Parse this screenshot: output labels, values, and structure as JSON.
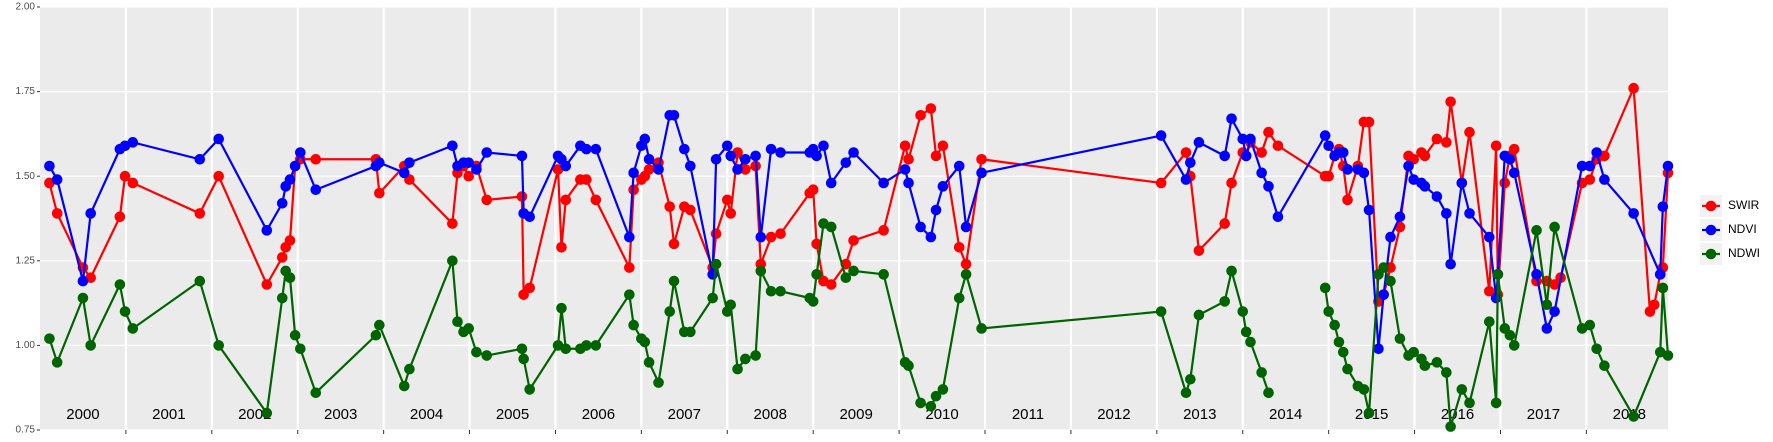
{
  "chart_data": {
    "type": "line",
    "xlim": [
      2000,
      2018.95
    ],
    "ylim": [
      0.75,
      2.0
    ],
    "yticks": [
      0.75,
      {
        "value": 1.0,
        "label": "1.00"
      },
      1.25,
      {
        "value": 1.5,
        "label": "1.50"
      },
      {
        "value": 1.75,
        "label": "1.75"
      },
      {
        "value": 2.0,
        "label": "2.00"
      }
    ],
    "xticks": [
      2001,
      2002,
      2003,
      2004,
      2005,
      2006,
      2007,
      2008,
      2009,
      2010,
      2011,
      2012,
      2013,
      2014,
      2015,
      2016,
      2017,
      2018
    ],
    "x_labels": [
      {
        "value": 2000.5,
        "label": "2000"
      },
      {
        "value": 2001.5,
        "label": "2001"
      },
      {
        "value": 2002.5,
        "label": "2002"
      },
      {
        "value": 2003.5,
        "label": "2003"
      },
      {
        "value": 2004.5,
        "label": "2004"
      },
      {
        "value": 2005.5,
        "label": "2005"
      },
      {
        "value": 2006.5,
        "label": "2006"
      },
      {
        "value": 2007.5,
        "label": "2007"
      },
      {
        "value": 2008.5,
        "label": "2008"
      },
      {
        "value": 2009.5,
        "label": "2009"
      },
      {
        "value": 2010.5,
        "label": "2010"
      },
      {
        "value": 2011.5,
        "label": "2011"
      },
      {
        "value": 2012.5,
        "label": "2012"
      },
      {
        "value": 2013.5,
        "label": "2013"
      },
      {
        "value": 2014.5,
        "label": "2014"
      },
      {
        "value": 2015.5,
        "label": "2015"
      },
      {
        "value": 2016.5,
        "label": "2016"
      },
      {
        "value": 2017.5,
        "label": "2017"
      },
      {
        "value": 2018.5,
        "label": "2018"
      }
    ],
    "grid": true,
    "legend": "right",
    "series": [
      {
        "name": "SWIR",
        "color": "#ff0000",
        "x": [
          2000.11,
          2000.2,
          2000.5,
          2000.59,
          2000.93,
          2000.99,
          2001.08,
          2001.86,
          2002.08,
          2002.64,
          2002.82,
          2002.86,
          2002.91,
          2002.97,
          2003.03,
          2003.21,
          2003.91,
          2003.95,
          2004.24,
          2004.3,
          2004.8,
          2004.86,
          2004.93,
          2004.99,
          2005.08,
          2005.2,
          2005.61,
          2005.63,
          2005.7,
          2006.03,
          2006.07,
          2006.12,
          2006.29,
          2006.36,
          2006.47,
          2006.86,
          2006.91,
          2007.0,
          2007.04,
          2007.09,
          2007.2,
          2007.33,
          2007.38,
          2007.5,
          2007.57,
          2007.83,
          2007.87,
          2008.0,
          2008.04,
          2008.12,
          2008.21,
          2008.33,
          2008.39,
          2008.51,
          2008.62,
          2008.96,
          2009.0,
          2009.04,
          2009.12,
          2009.21,
          2009.38,
          2009.47,
          2009.82,
          2010.07,
          2010.11,
          2010.25,
          2010.37,
          2010.43,
          2010.51,
          2010.7,
          2010.78,
          2010.96,
          2013.05,
          2013.34,
          2013.39,
          2013.49,
          2013.79,
          2013.87,
          2014.0,
          2014.04,
          2014.09,
          2014.22,
          2014.3,
          2014.41,
          2014.96,
          2015.0,
          2015.07,
          2015.12,
          2015.17,
          2015.22,
          2015.34,
          2015.41,
          2015.47,
          2015.58,
          2015.64,
          2015.72,
          2015.83,
          2015.93,
          2015.99,
          2016.08,
          2016.12,
          2016.26,
          2016.37,
          2016.42,
          2016.55,
          2016.64,
          2016.87,
          2016.95,
          2016.97,
          2017.05,
          2017.11,
          2017.16,
          2017.42,
          2017.54,
          2017.63,
          2017.7,
          2017.95,
          2018.04,
          2018.12,
          2018.21,
          2018.55,
          2018.74,
          2018.79,
          2018.86,
          2018.89,
          2018.95
        ],
        "values": [
          1.48,
          1.39,
          1.23,
          1.2,
          1.38,
          1.5,
          1.48,
          1.39,
          1.5,
          1.18,
          1.26,
          1.29,
          1.31,
          1.53,
          1.55,
          1.55,
          1.55,
          1.45,
          1.53,
          1.49,
          1.36,
          1.51,
          1.53,
          1.5,
          1.53,
          1.43,
          1.44,
          1.15,
          1.17,
          1.52,
          1.29,
          1.43,
          1.49,
          1.49,
          1.43,
          1.23,
          1.46,
          1.49,
          1.5,
          1.52,
          1.54,
          1.41,
          1.3,
          1.41,
          1.4,
          1.23,
          1.33,
          1.43,
          1.39,
          1.57,
          1.52,
          1.53,
          1.24,
          1.32,
          1.33,
          1.45,
          1.46,
          1.3,
          1.19,
          1.18,
          1.24,
          1.31,
          1.34,
          1.59,
          1.55,
          1.68,
          1.7,
          1.56,
          1.59,
          1.29,
          1.24,
          1.55,
          1.48,
          1.57,
          1.5,
          1.28,
          1.36,
          1.48,
          1.57,
          1.56,
          1.6,
          1.57,
          1.63,
          1.59,
          1.5,
          1.5,
          1.56,
          1.58,
          1.53,
          1.43,
          1.53,
          1.66,
          1.66,
          1.13,
          1.15,
          1.23,
          1.35,
          1.56,
          1.55,
          1.57,
          1.56,
          1.61,
          1.6,
          1.72,
          1.48,
          1.63,
          1.16,
          1.59,
          1.15,
          1.48,
          1.56,
          1.58,
          1.19,
          1.19,
          1.18,
          1.2,
          1.48,
          1.49,
          1.55,
          1.56,
          1.76,
          1.1,
          1.12,
          1.21,
          1.23,
          1.51
        ]
      },
      {
        "name": "NDVI",
        "color": "#0000ff",
        "x": [
          2000.11,
          2000.2,
          2000.5,
          2000.59,
          2000.93,
          2000.99,
          2001.08,
          2001.86,
          2002.08,
          2002.64,
          2002.82,
          2002.86,
          2002.91,
          2002.97,
          2003.03,
          2003.21,
          2003.91,
          2003.95,
          2004.24,
          2004.3,
          2004.8,
          2004.86,
          2004.93,
          2004.99,
          2005.08,
          2005.2,
          2005.61,
          2005.63,
          2005.7,
          2006.03,
          2006.07,
          2006.12,
          2006.29,
          2006.36,
          2006.47,
          2006.86,
          2006.91,
          2007.0,
          2007.04,
          2007.09,
          2007.2,
          2007.33,
          2007.38,
          2007.5,
          2007.57,
          2007.83,
          2007.87,
          2008.0,
          2008.04,
          2008.12,
          2008.21,
          2008.33,
          2008.39,
          2008.51,
          2008.62,
          2008.96,
          2009.0,
          2009.04,
          2009.12,
          2009.21,
          2009.38,
          2009.47,
          2009.82,
          2010.07,
          2010.11,
          2010.25,
          2010.37,
          2010.43,
          2010.51,
          2010.7,
          2010.78,
          2010.96,
          2013.05,
          2013.34,
          2013.39,
          2013.49,
          2013.79,
          2013.87,
          2014.0,
          2014.04,
          2014.09,
          2014.22,
          2014.3,
          2014.41,
          2014.96,
          2015.0,
          2015.07,
          2015.12,
          2015.17,
          2015.22,
          2015.34,
          2015.41,
          2015.47,
          2015.58,
          2015.64,
          2015.72,
          2015.83,
          2015.93,
          2015.99,
          2016.08,
          2016.12,
          2016.26,
          2016.37,
          2016.42,
          2016.55,
          2016.64,
          2016.87,
          2016.95,
          2016.97,
          2017.05,
          2017.11,
          2017.16,
          2017.42,
          2017.54,
          2017.63,
          2017.95,
          2018.04,
          2018.12,
          2018.21,
          2018.55,
          2018.86,
          2018.89,
          2018.95
        ],
        "values": [
          1.53,
          1.49,
          1.19,
          1.39,
          1.58,
          1.59,
          1.6,
          1.55,
          1.61,
          1.34,
          1.42,
          1.47,
          1.49,
          1.53,
          1.57,
          1.46,
          1.53,
          1.54,
          1.51,
          1.54,
          1.59,
          1.53,
          1.54,
          1.54,
          1.52,
          1.57,
          1.56,
          1.39,
          1.38,
          1.56,
          1.55,
          1.53,
          1.59,
          1.58,
          1.58,
          1.32,
          1.51,
          1.59,
          1.61,
          1.55,
          1.52,
          1.68,
          1.68,
          1.58,
          1.53,
          1.21,
          1.55,
          1.59,
          1.56,
          1.52,
          1.55,
          1.56,
          1.32,
          1.58,
          1.57,
          1.57,
          1.58,
          1.56,
          1.59,
          1.48,
          1.54,
          1.57,
          1.48,
          1.52,
          1.48,
          1.35,
          1.32,
          1.4,
          1.47,
          1.53,
          1.35,
          1.51,
          1.62,
          1.49,
          1.54,
          1.6,
          1.56,
          1.67,
          1.61,
          1.56,
          1.61,
          1.51,
          1.47,
          1.38,
          1.62,
          1.59,
          1.56,
          1.57,
          1.57,
          1.52,
          1.52,
          1.51,
          1.4,
          0.99,
          1.15,
          1.32,
          1.38,
          1.53,
          1.49,
          1.48,
          1.47,
          1.44,
          1.39,
          1.24,
          1.48,
          1.39,
          1.32,
          1.14,
          1.21,
          1.56,
          1.55,
          1.51,
          1.21,
          1.05,
          1.1,
          1.53,
          1.53,
          1.57,
          1.49,
          1.39,
          1.21,
          1.41,
          1.53
        ]
      },
      {
        "name": "NDWI",
        "color": "#006400",
        "x": [
          2000.11,
          2000.2,
          2000.5,
          2000.59,
          2000.93,
          2000.99,
          2001.08,
          2001.86,
          2002.08,
          2002.64,
          2002.82,
          2002.86,
          2002.91,
          2002.97,
          2003.03,
          2003.21,
          2003.91,
          2003.95,
          2004.24,
          2004.3,
          2004.8,
          2004.86,
          2004.93,
          2004.99,
          2005.08,
          2005.2,
          2005.61,
          2005.63,
          2005.7,
          2006.03,
          2006.07,
          2006.12,
          2006.29,
          2006.36,
          2006.47,
          2006.86,
          2006.91,
          2007.0,
          2007.04,
          2007.09,
          2007.2,
          2007.33,
          2007.38,
          2007.5,
          2007.57,
          2007.83,
          2007.87,
          2008.0,
          2008.04,
          2008.12,
          2008.21,
          2008.33,
          2008.39,
          2008.51,
          2008.62,
          2008.96,
          2009.0,
          2009.04,
          2009.12,
          2009.21,
          2009.38,
          2009.47,
          2009.82,
          2010.07,
          2010.11,
          2010.25,
          2010.37,
          2010.43,
          2010.51,
          2010.7,
          2010.78,
          2010.96,
          2013.05,
          2013.34,
          2013.39,
          2013.49,
          2013.79,
          2013.87,
          2014.0,
          2014.04,
          2014.09,
          2014.22,
          2014.3,
          2014.41,
          2014.96,
          2015.0,
          2015.07,
          2015.12,
          2015.17,
          2015.22,
          2015.34,
          2015.41,
          2015.47,
          2015.58,
          2015.64,
          2015.72,
          2015.83,
          2015.93,
          2015.99,
          2016.08,
          2016.12,
          2016.26,
          2016.37,
          2016.42,
          2016.55,
          2016.64,
          2016.87,
          2016.95,
          2016.97,
          2017.05,
          2017.11,
          2017.16,
          2017.42,
          2017.54,
          2017.63,
          2017.95,
          2018.04,
          2018.12,
          2018.21,
          2018.55,
          2018.86,
          2018.89,
          2018.95
        ],
        "values": [
          1.02,
          0.95,
          1.14,
          1.0,
          1.18,
          1.1,
          1.05,
          1.19,
          1.0,
          0.8,
          1.14,
          1.22,
          1.2,
          1.03,
          0.99,
          0.86,
          1.03,
          1.06,
          0.88,
          0.93,
          1.25,
          1.07,
          1.04,
          1.05,
          0.98,
          0.97,
          0.99,
          0.96,
          0.87,
          1.0,
          1.11,
          0.99,
          0.99,
          1.0,
          1.0,
          1.15,
          1.06,
          1.02,
          1.01,
          0.95,
          0.89,
          1.1,
          1.19,
          1.04,
          1.04,
          1.14,
          1.24,
          1.1,
          1.12,
          0.93,
          0.96,
          0.97,
          1.22,
          1.16,
          1.16,
          1.14,
          1.13,
          1.21,
          1.36,
          1.35,
          1.2,
          1.22,
          1.21,
          0.95,
          0.94,
          0.83,
          0.82,
          0.85,
          0.87,
          1.14,
          1.21,
          1.05,
          1.1,
          0.86,
          0.9,
          1.09,
          1.13,
          1.22,
          1.1,
          1.04,
          1.01,
          0.92,
          0.86,
          null,
          1.17,
          1.1,
          1.06,
          1.01,
          0.98,
          0.93,
          0.88,
          0.87,
          0.8,
          1.21,
          1.23,
          1.19,
          1.02,
          0.97,
          0.98,
          0.96,
          0.94,
          0.95,
          0.92,
          0.76,
          0.87,
          0.83,
          1.07,
          0.83,
          1.21,
          1.05,
          1.03,
          1.0,
          1.34,
          1.12,
          1.35,
          1.05,
          1.06,
          0.99,
          0.94,
          0.79,
          0.98,
          1.17,
          0.97
        ]
      }
    ]
  }
}
